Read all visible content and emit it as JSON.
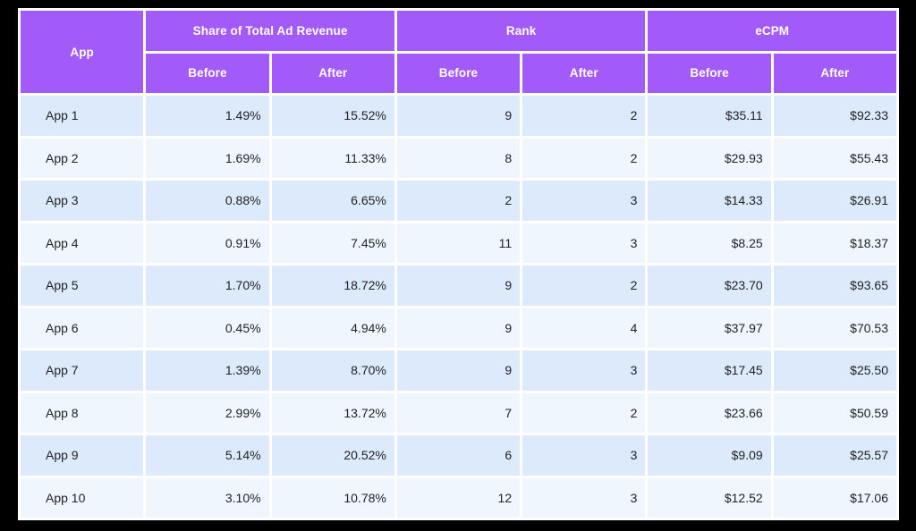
{
  "colors": {
    "header_bg": "#A25AF8",
    "header_text": "#FFFFFF",
    "row_odd_bg": "#DCEAFB",
    "row_even_bg": "#EFF6FE",
    "cell_gap": "#FFFFFF",
    "page_bg": "#000000",
    "body_text": "#1F2024"
  },
  "table": {
    "app_header": "App",
    "groups": [
      {
        "label": "Share of Total Ad Revenue",
        "sub": [
          "Before",
          "After"
        ]
      },
      {
        "label": "Rank",
        "sub": [
          "Before",
          "After"
        ]
      },
      {
        "label": "eCPM",
        "sub": [
          "Before",
          "After"
        ]
      }
    ],
    "rows": [
      {
        "app": "App 1",
        "share_before": "1.49%",
        "share_after": "15.52%",
        "rank_before": "9",
        "rank_after": "2",
        "ecpm_before": "$35.11",
        "ecpm_after": "$92.33"
      },
      {
        "app": "App 2",
        "share_before": "1.69%",
        "share_after": "11.33%",
        "rank_before": "8",
        "rank_after": "2",
        "ecpm_before": "$29.93",
        "ecpm_after": "$55.43"
      },
      {
        "app": "App 3",
        "share_before": "0.88%",
        "share_after": "6.65%",
        "rank_before": "2",
        "rank_after": "3",
        "ecpm_before": "$14.33",
        "ecpm_after": "$26.91"
      },
      {
        "app": "App 4",
        "share_before": "0.91%",
        "share_after": "7.45%",
        "rank_before": "11",
        "rank_after": "3",
        "ecpm_before": "$8.25",
        "ecpm_after": "$18.37"
      },
      {
        "app": "App 5",
        "share_before": "1.70%",
        "share_after": "18.72%",
        "rank_before": "9",
        "rank_after": "2",
        "ecpm_before": "$23.70",
        "ecpm_after": "$93.65"
      },
      {
        "app": "App 6",
        "share_before": "0.45%",
        "share_after": "4.94%",
        "rank_before": "9",
        "rank_after": "4",
        "ecpm_before": "$37.97",
        "ecpm_after": "$70.53"
      },
      {
        "app": "App 7",
        "share_before": "1.39%",
        "share_after": "8.70%",
        "rank_before": "9",
        "rank_after": "3",
        "ecpm_before": "$17.45",
        "ecpm_after": "$25.50"
      },
      {
        "app": "App 8",
        "share_before": "2.99%",
        "share_after": "13.72%",
        "rank_before": "7",
        "rank_after": "2",
        "ecpm_before": "$23.66",
        "ecpm_after": "$50.59"
      },
      {
        "app": "App 9",
        "share_before": "5.14%",
        "share_after": "20.52%",
        "rank_before": "6",
        "rank_after": "3",
        "ecpm_before": "$9.09",
        "ecpm_after": "$25.57"
      },
      {
        "app": "App 10",
        "share_before": "3.10%",
        "share_after": "10.78%",
        "rank_before": "12",
        "rank_after": "3",
        "ecpm_before": "$12.52",
        "ecpm_after": "$17.06"
      }
    ]
  },
  "chart_data": {
    "type": "table",
    "title": "",
    "column_groups": [
      {
        "label": "App",
        "columns": [
          "App"
        ]
      },
      {
        "label": "Share of Total Ad Revenue",
        "columns": [
          "Before",
          "After"
        ]
      },
      {
        "label": "Rank",
        "columns": [
          "Before",
          "After"
        ]
      },
      {
        "label": "eCPM",
        "columns": [
          "Before",
          "After"
        ]
      }
    ],
    "rows": [
      {
        "app": "App 1",
        "share_before_pct": 1.49,
        "share_after_pct": 15.52,
        "rank_before": 9,
        "rank_after": 2,
        "ecpm_before_usd": 35.11,
        "ecpm_after_usd": 92.33
      },
      {
        "app": "App 2",
        "share_before_pct": 1.69,
        "share_after_pct": 11.33,
        "rank_before": 8,
        "rank_after": 2,
        "ecpm_before_usd": 29.93,
        "ecpm_after_usd": 55.43
      },
      {
        "app": "App 3",
        "share_before_pct": 0.88,
        "share_after_pct": 6.65,
        "rank_before": 2,
        "rank_after": 3,
        "ecpm_before_usd": 14.33,
        "ecpm_after_usd": 26.91
      },
      {
        "app": "App 4",
        "share_before_pct": 0.91,
        "share_after_pct": 7.45,
        "rank_before": 11,
        "rank_after": 3,
        "ecpm_before_usd": 8.25,
        "ecpm_after_usd": 18.37
      },
      {
        "app": "App 5",
        "share_before_pct": 1.7,
        "share_after_pct": 18.72,
        "rank_before": 9,
        "rank_after": 2,
        "ecpm_before_usd": 23.7,
        "ecpm_after_usd": 93.65
      },
      {
        "app": "App 6",
        "share_before_pct": 0.45,
        "share_after_pct": 4.94,
        "rank_before": 9,
        "rank_after": 4,
        "ecpm_before_usd": 37.97,
        "ecpm_after_usd": 70.53
      },
      {
        "app": "App 7",
        "share_before_pct": 1.39,
        "share_after_pct": 8.7,
        "rank_before": 9,
        "rank_after": 3,
        "ecpm_before_usd": 17.45,
        "ecpm_after_usd": 25.5
      },
      {
        "app": "App 8",
        "share_before_pct": 2.99,
        "share_after_pct": 13.72,
        "rank_before": 7,
        "rank_after": 2,
        "ecpm_before_usd": 23.66,
        "ecpm_after_usd": 50.59
      },
      {
        "app": "App 9",
        "share_before_pct": 5.14,
        "share_after_pct": 20.52,
        "rank_before": 6,
        "rank_after": 3,
        "ecpm_before_usd": 9.09,
        "ecpm_after_usd": 25.57
      },
      {
        "app": "App 10",
        "share_before_pct": 3.1,
        "share_after_pct": 10.78,
        "rank_before": 12,
        "rank_after": 3,
        "ecpm_before_usd": 12.52,
        "ecpm_after_usd": 17.06
      }
    ]
  }
}
